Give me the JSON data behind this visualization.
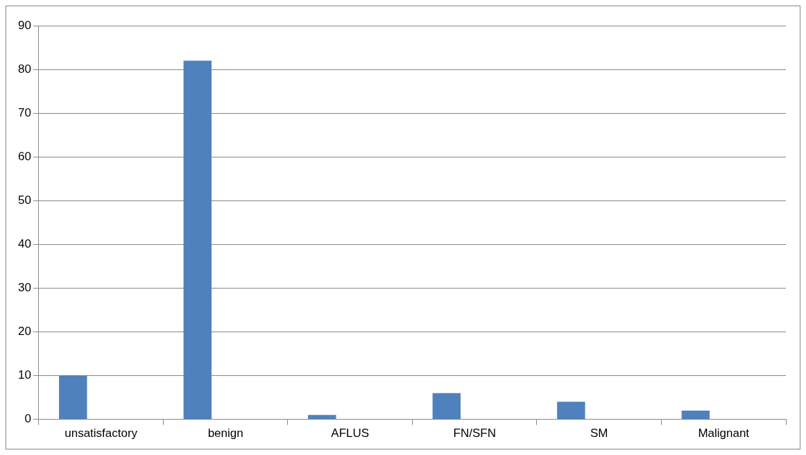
{
  "chart_data": {
    "type": "bar",
    "categories": [
      "unsatisfactory",
      "benign",
      "AFLUS",
      "FN/SFN",
      "SM",
      "Malignant"
    ],
    "values": [
      10,
      82,
      1,
      6,
      4,
      2
    ],
    "color": "#4f81bd",
    "ylim": [
      0,
      90
    ],
    "yticks": [
      0,
      10,
      20,
      30,
      40,
      50,
      60,
      70,
      80,
      90
    ],
    "grid": "y",
    "legend": false
  }
}
